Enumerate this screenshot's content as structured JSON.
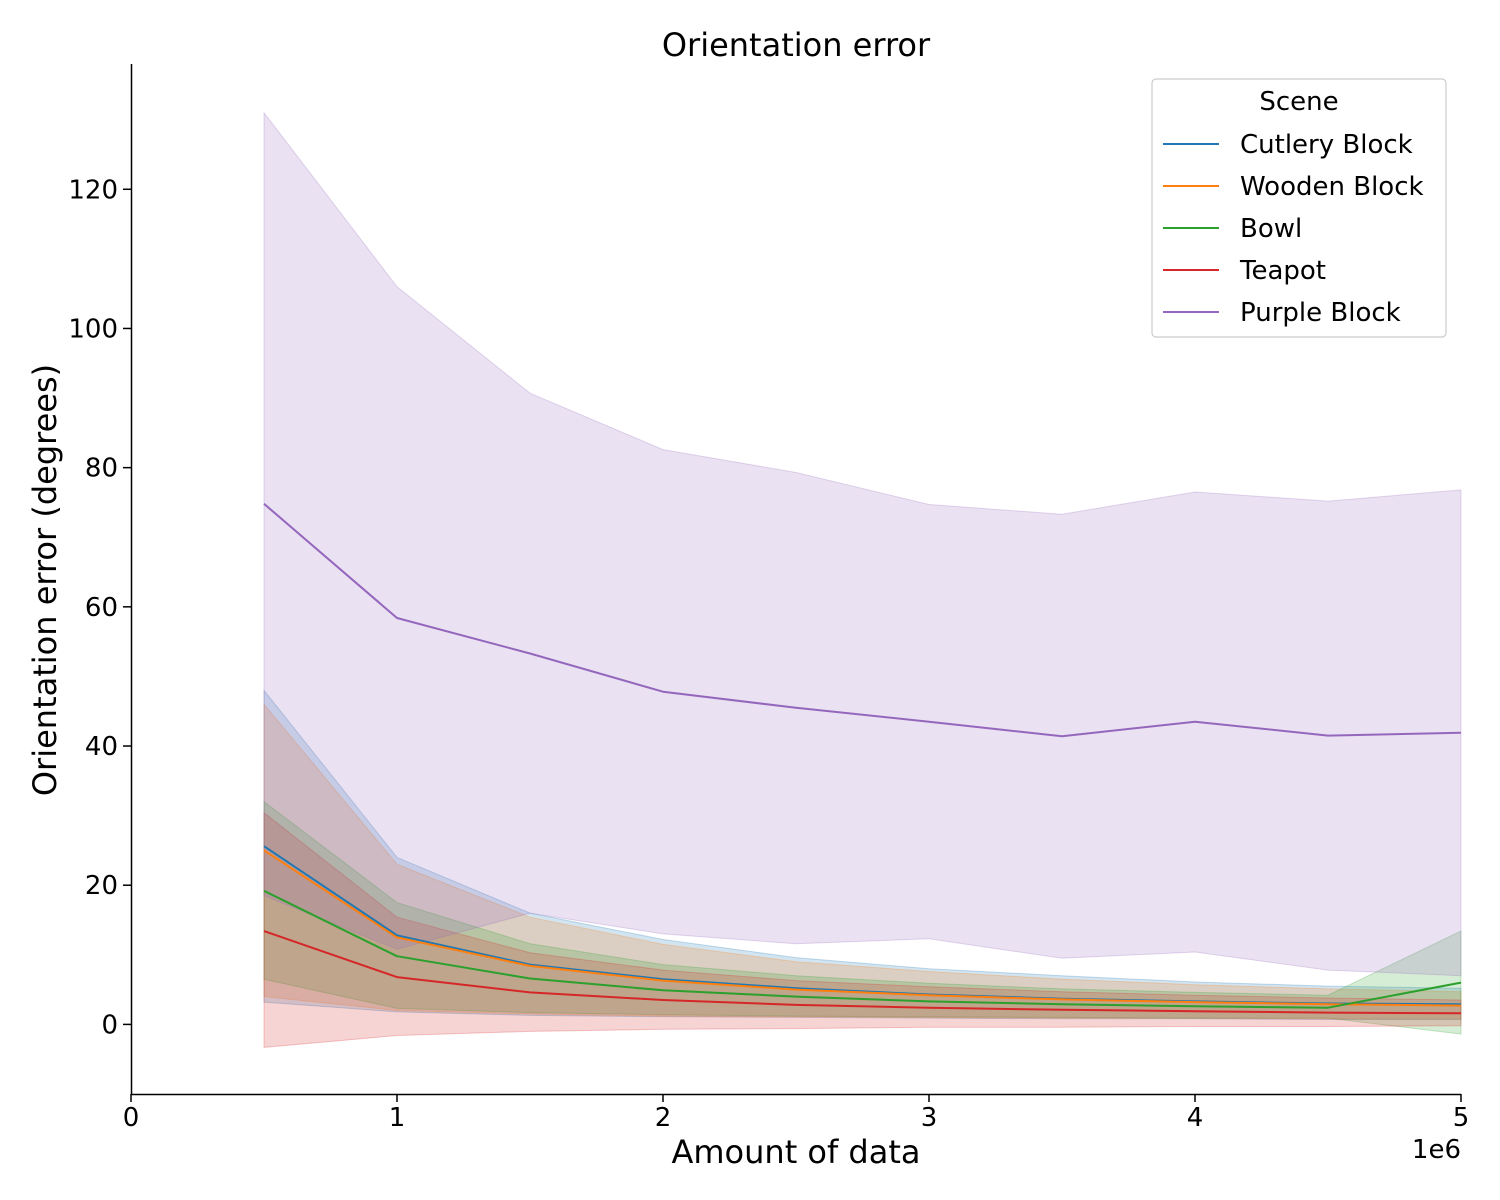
{
  "chart_data": {
    "type": "line",
    "title": "Orientation error",
    "xlabel": "Amount of data",
    "ylabel": "Orientation error (degrees)",
    "x_offset_label": "1e6",
    "xlim": [
      0,
      5
    ],
    "ylim": [
      -10,
      138
    ],
    "x_ticks": [
      0,
      1,
      2,
      3,
      4,
      5
    ],
    "y_ticks": [
      0,
      20,
      40,
      60,
      80,
      100,
      120
    ],
    "grid": false,
    "legend": {
      "title": "Scene",
      "placement": "top-right"
    },
    "x": [
      0.5,
      1.0,
      1.5,
      2.0,
      2.5,
      3.0,
      3.5,
      4.0,
      4.5,
      5.0
    ],
    "series": [
      {
        "name": "Cutlery Block",
        "color": "#1f77b4",
        "fill": "#aec7e8",
        "values": [
          25.6,
          12.8,
          8.6,
          6.5,
          5.2,
          4.3,
          3.7,
          3.3,
          3.0,
          2.9
        ],
        "lower": [
          3.2,
          1.8,
          1.3,
          1.1,
          1.0,
          0.9,
          0.8,
          0.8,
          0.7,
          0.7
        ],
        "upper": [
          48.0,
          24.0,
          16.0,
          12.2,
          9.6,
          8.0,
          7.0,
          6.1,
          5.5,
          5.2
        ]
      },
      {
        "name": "Wooden Block",
        "color": "#ff7f0e",
        "fill": "#e8c7b0",
        "values": [
          25.0,
          12.5,
          8.4,
          6.3,
          5.0,
          4.2,
          3.6,
          3.2,
          2.9,
          2.7
        ],
        "lower": [
          4.0,
          2.0,
          1.5,
          1.2,
          1.1,
          1.0,
          0.9,
          0.9,
          0.8,
          0.8
        ],
        "upper": [
          46.0,
          23.0,
          15.4,
          11.5,
          9.0,
          7.6,
          6.5,
          5.7,
          5.1,
          4.7
        ]
      },
      {
        "name": "Bowl",
        "color": "#2ca02c",
        "fill": "#98df8a",
        "values": [
          19.2,
          9.8,
          6.6,
          4.9,
          4.0,
          3.3,
          2.9,
          2.6,
          2.4,
          6.0
        ],
        "lower": [
          6.5,
          2.3,
          1.7,
          1.4,
          1.2,
          1.1,
          1.0,
          0.9,
          0.9,
          -1.4
        ],
        "upper": [
          32.0,
          17.5,
          11.6,
          8.6,
          7.0,
          5.9,
          5.1,
          4.6,
          4.2,
          13.4
        ]
      },
      {
        "name": "Teapot",
        "color": "#d62728",
        "fill": "#f4a3a4",
        "values": [
          13.4,
          6.8,
          4.6,
          3.5,
          2.8,
          2.4,
          2.1,
          1.9,
          1.7,
          1.6
        ],
        "lower": [
          -3.3,
          -1.6,
          -1.0,
          -0.7,
          -0.6,
          -0.4,
          -0.4,
          -0.3,
          -0.3,
          -0.2
        ],
        "upper": [
          30.4,
          15.4,
          10.3,
          7.8,
          6.3,
          5.4,
          4.7,
          4.2,
          3.8,
          3.5
        ]
      },
      {
        "name": "Purple Block",
        "color": "#9467bd",
        "fill": "#c5b0d5",
        "values": [
          74.8,
          58.4,
          53.3,
          47.8,
          45.5,
          43.5,
          41.4,
          43.5,
          41.5,
          41.9
        ],
        "lower": [
          18.5,
          10.8,
          16.0,
          13.0,
          11.6,
          12.3,
          9.5,
          10.4,
          7.8,
          7.0
        ],
        "upper": [
          131.0,
          106.0,
          90.7,
          82.6,
          79.3,
          74.7,
          73.3,
          76.5,
          75.2,
          76.8
        ]
      }
    ]
  }
}
